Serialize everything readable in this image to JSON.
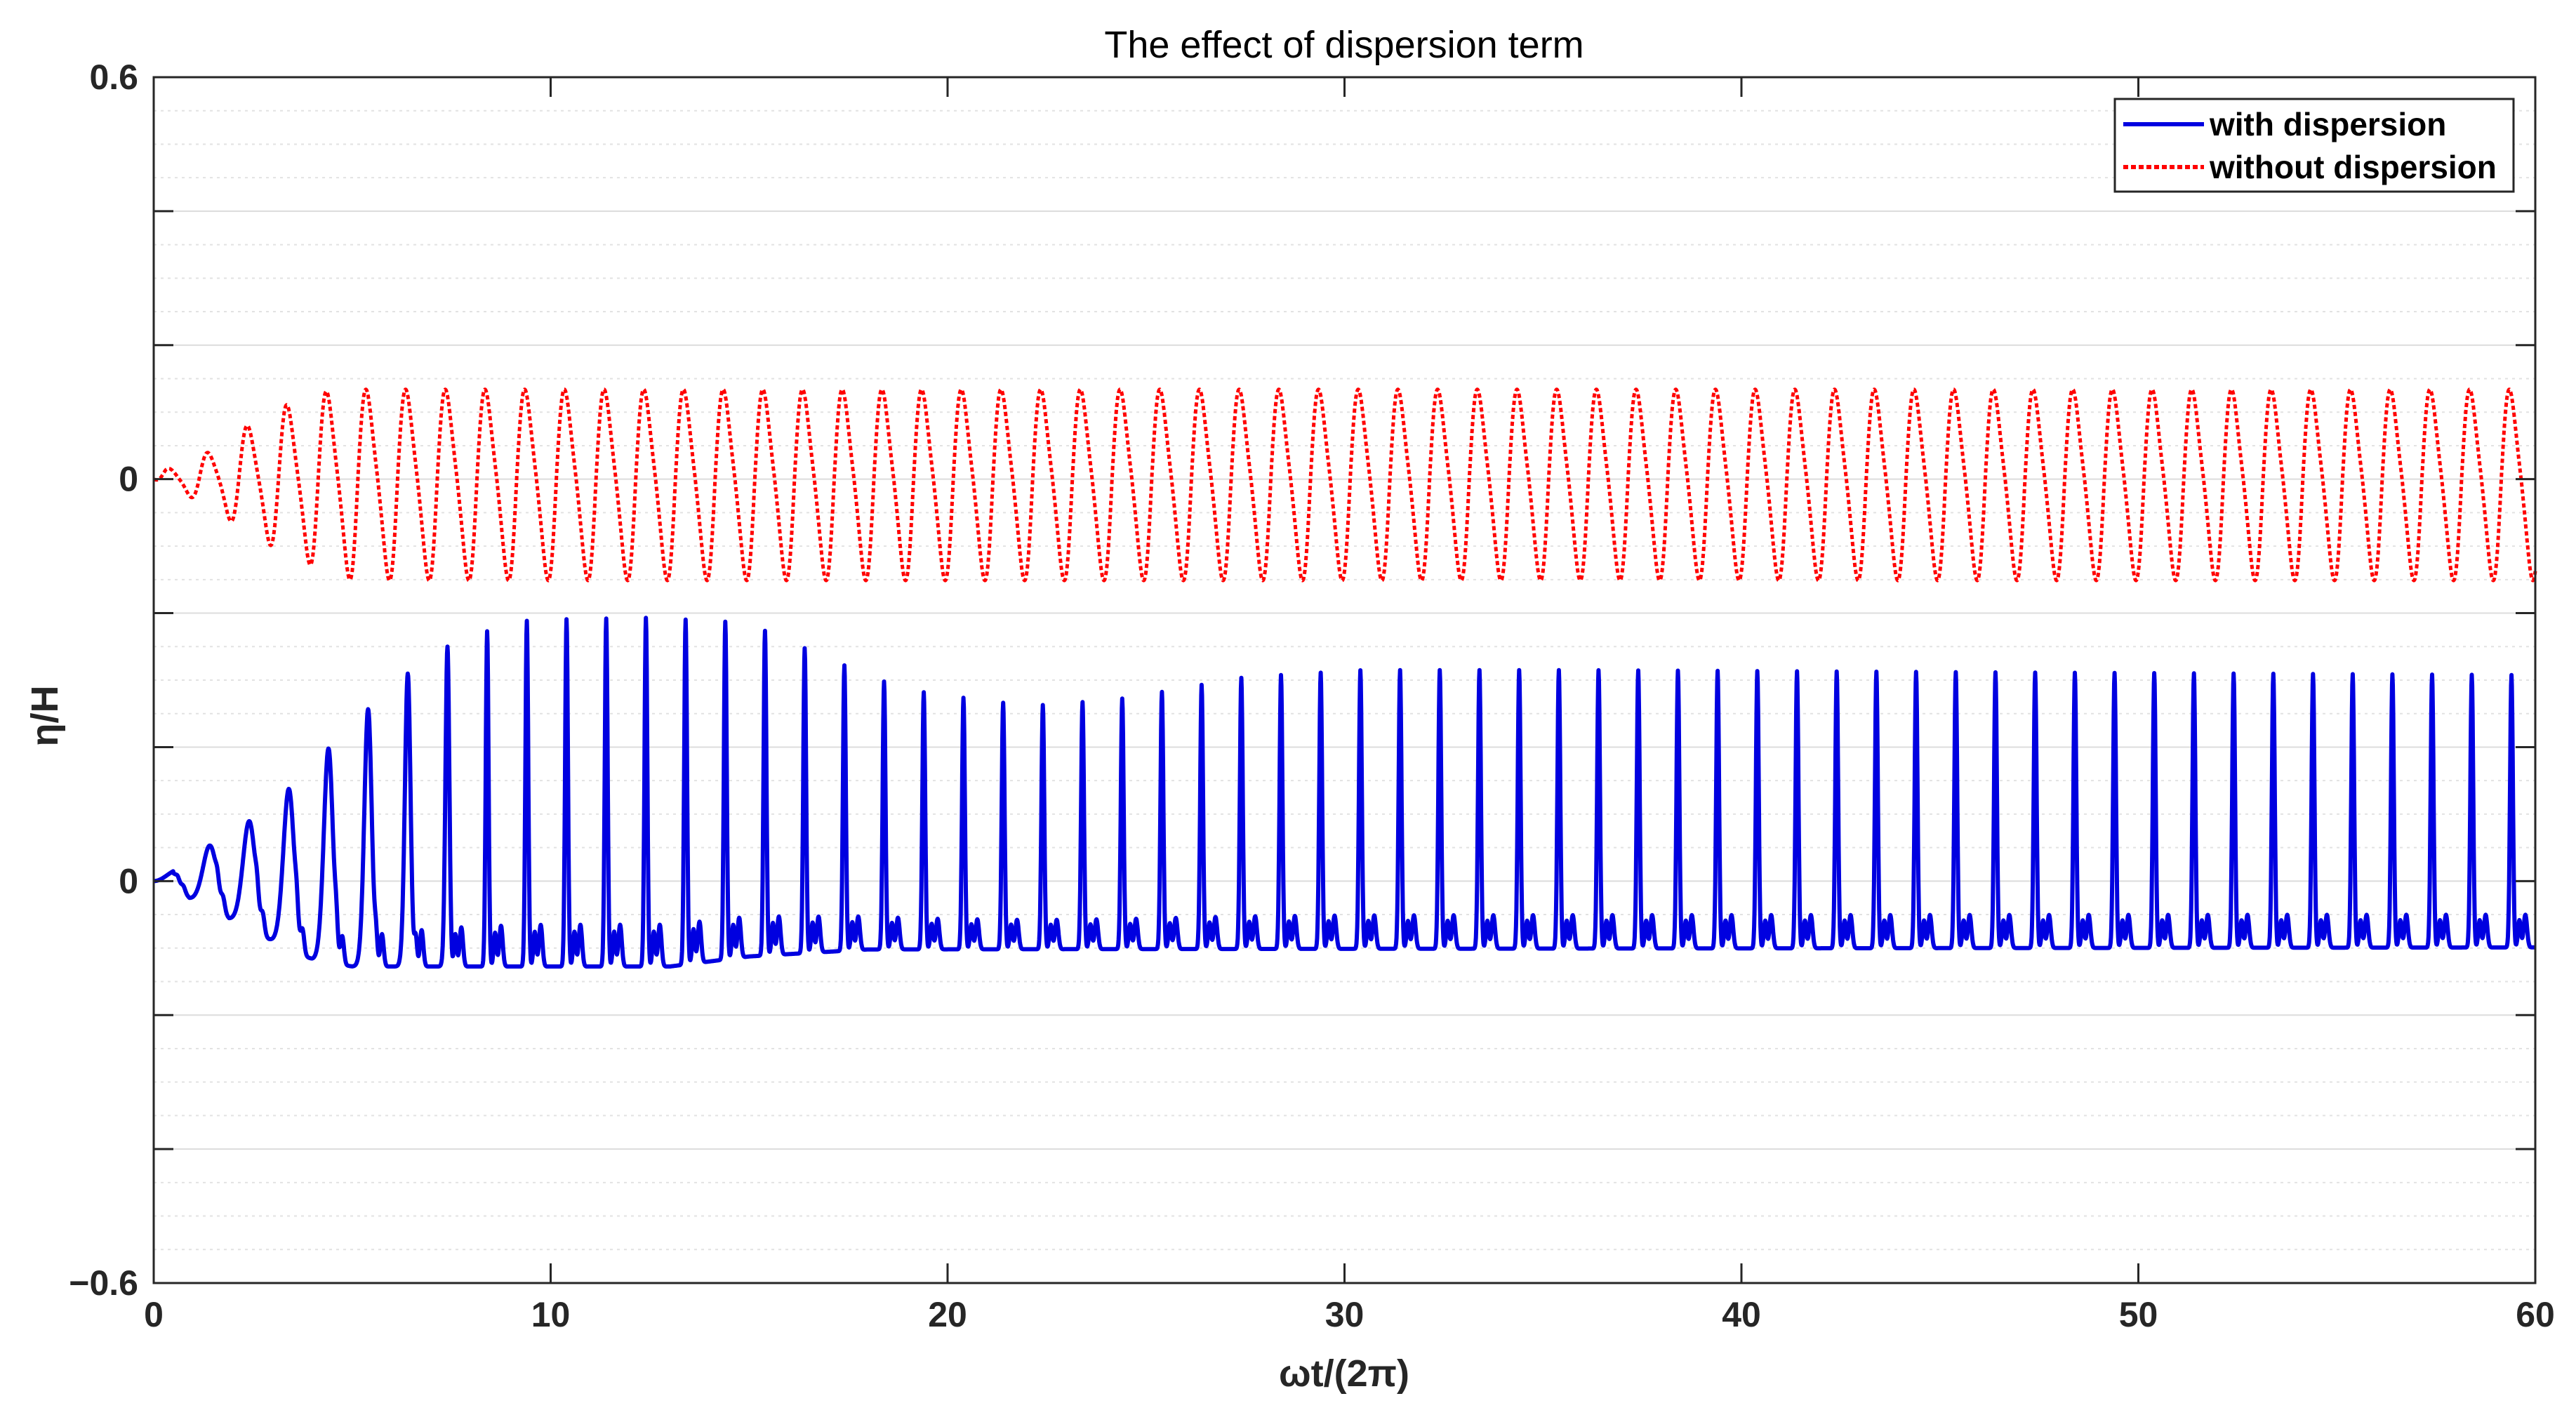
{
  "chart_data": {
    "type": "line",
    "title": "The effect of dispersion term",
    "xlabel": "ωt/(2π)",
    "ylabel": "η/H",
    "xlim": [
      0,
      60
    ],
    "ylim": [
      -0.6,
      0.6
    ],
    "xticks": [
      "0",
      "10",
      "20",
      "30",
      "40",
      "50",
      "60"
    ],
    "yticks": [
      "0.6",
      "0",
      "0",
      "−0.6"
    ],
    "grid": true,
    "minor_grid": true,
    "legend_position": "top-right",
    "period": 1,
    "series": [
      {
        "name": "with dispersion",
        "color": "#0000e0",
        "style": "solid",
        "baseline": -0.2,
        "peak_envelope": [
          [
            0.5,
            0.01
          ],
          [
            1.5,
            0.038
          ],
          [
            2.5,
            0.062
          ],
          [
            3.5,
            0.095
          ],
          [
            4.5,
            0.136
          ],
          [
            5.5,
            0.175
          ],
          [
            6.5,
            0.21
          ],
          [
            7.5,
            0.236
          ],
          [
            8.5,
            0.25
          ],
          [
            9.5,
            0.26
          ],
          [
            12.5,
            0.262
          ],
          [
            14.5,
            0.258
          ],
          [
            15.5,
            0.248
          ],
          [
            16.5,
            0.23
          ],
          [
            17.5,
            0.213
          ],
          [
            18.5,
            0.197
          ],
          [
            19.5,
            0.187
          ],
          [
            21.5,
            0.177
          ],
          [
            22.5,
            0.175
          ],
          [
            24.5,
            0.182
          ],
          [
            27.5,
            0.203
          ],
          [
            30.5,
            0.21
          ],
          [
            35.5,
            0.21
          ],
          [
            60,
            0.205
          ]
        ],
        "trough_envelope": [
          [
            0,
            0
          ],
          [
            1,
            -0.02
          ],
          [
            2,
            -0.04
          ],
          [
            3,
            -0.06
          ],
          [
            4,
            -0.078
          ],
          [
            5,
            -0.085
          ],
          [
            13,
            -0.085
          ],
          [
            15,
            -0.075
          ],
          [
            18,
            -0.068
          ],
          [
            60,
            -0.066
          ]
        ]
      },
      {
        "name": "without dispersion",
        "color": "#ff0000",
        "style": "dotted",
        "baseline": 0.2,
        "peak_envelope": [
          [
            0.3,
            0.01
          ],
          [
            1.5,
            0.03
          ],
          [
            2.5,
            0.06
          ],
          [
            3.5,
            0.08
          ],
          [
            4.5,
            0.093
          ],
          [
            60,
            0.093
          ]
        ],
        "trough_envelope": [
          [
            0,
            0
          ],
          [
            1,
            -0.02
          ],
          [
            2,
            -0.045
          ],
          [
            3,
            -0.07
          ],
          [
            4,
            -0.09
          ],
          [
            5,
            -0.105
          ],
          [
            60,
            -0.105
          ]
        ]
      }
    ]
  }
}
